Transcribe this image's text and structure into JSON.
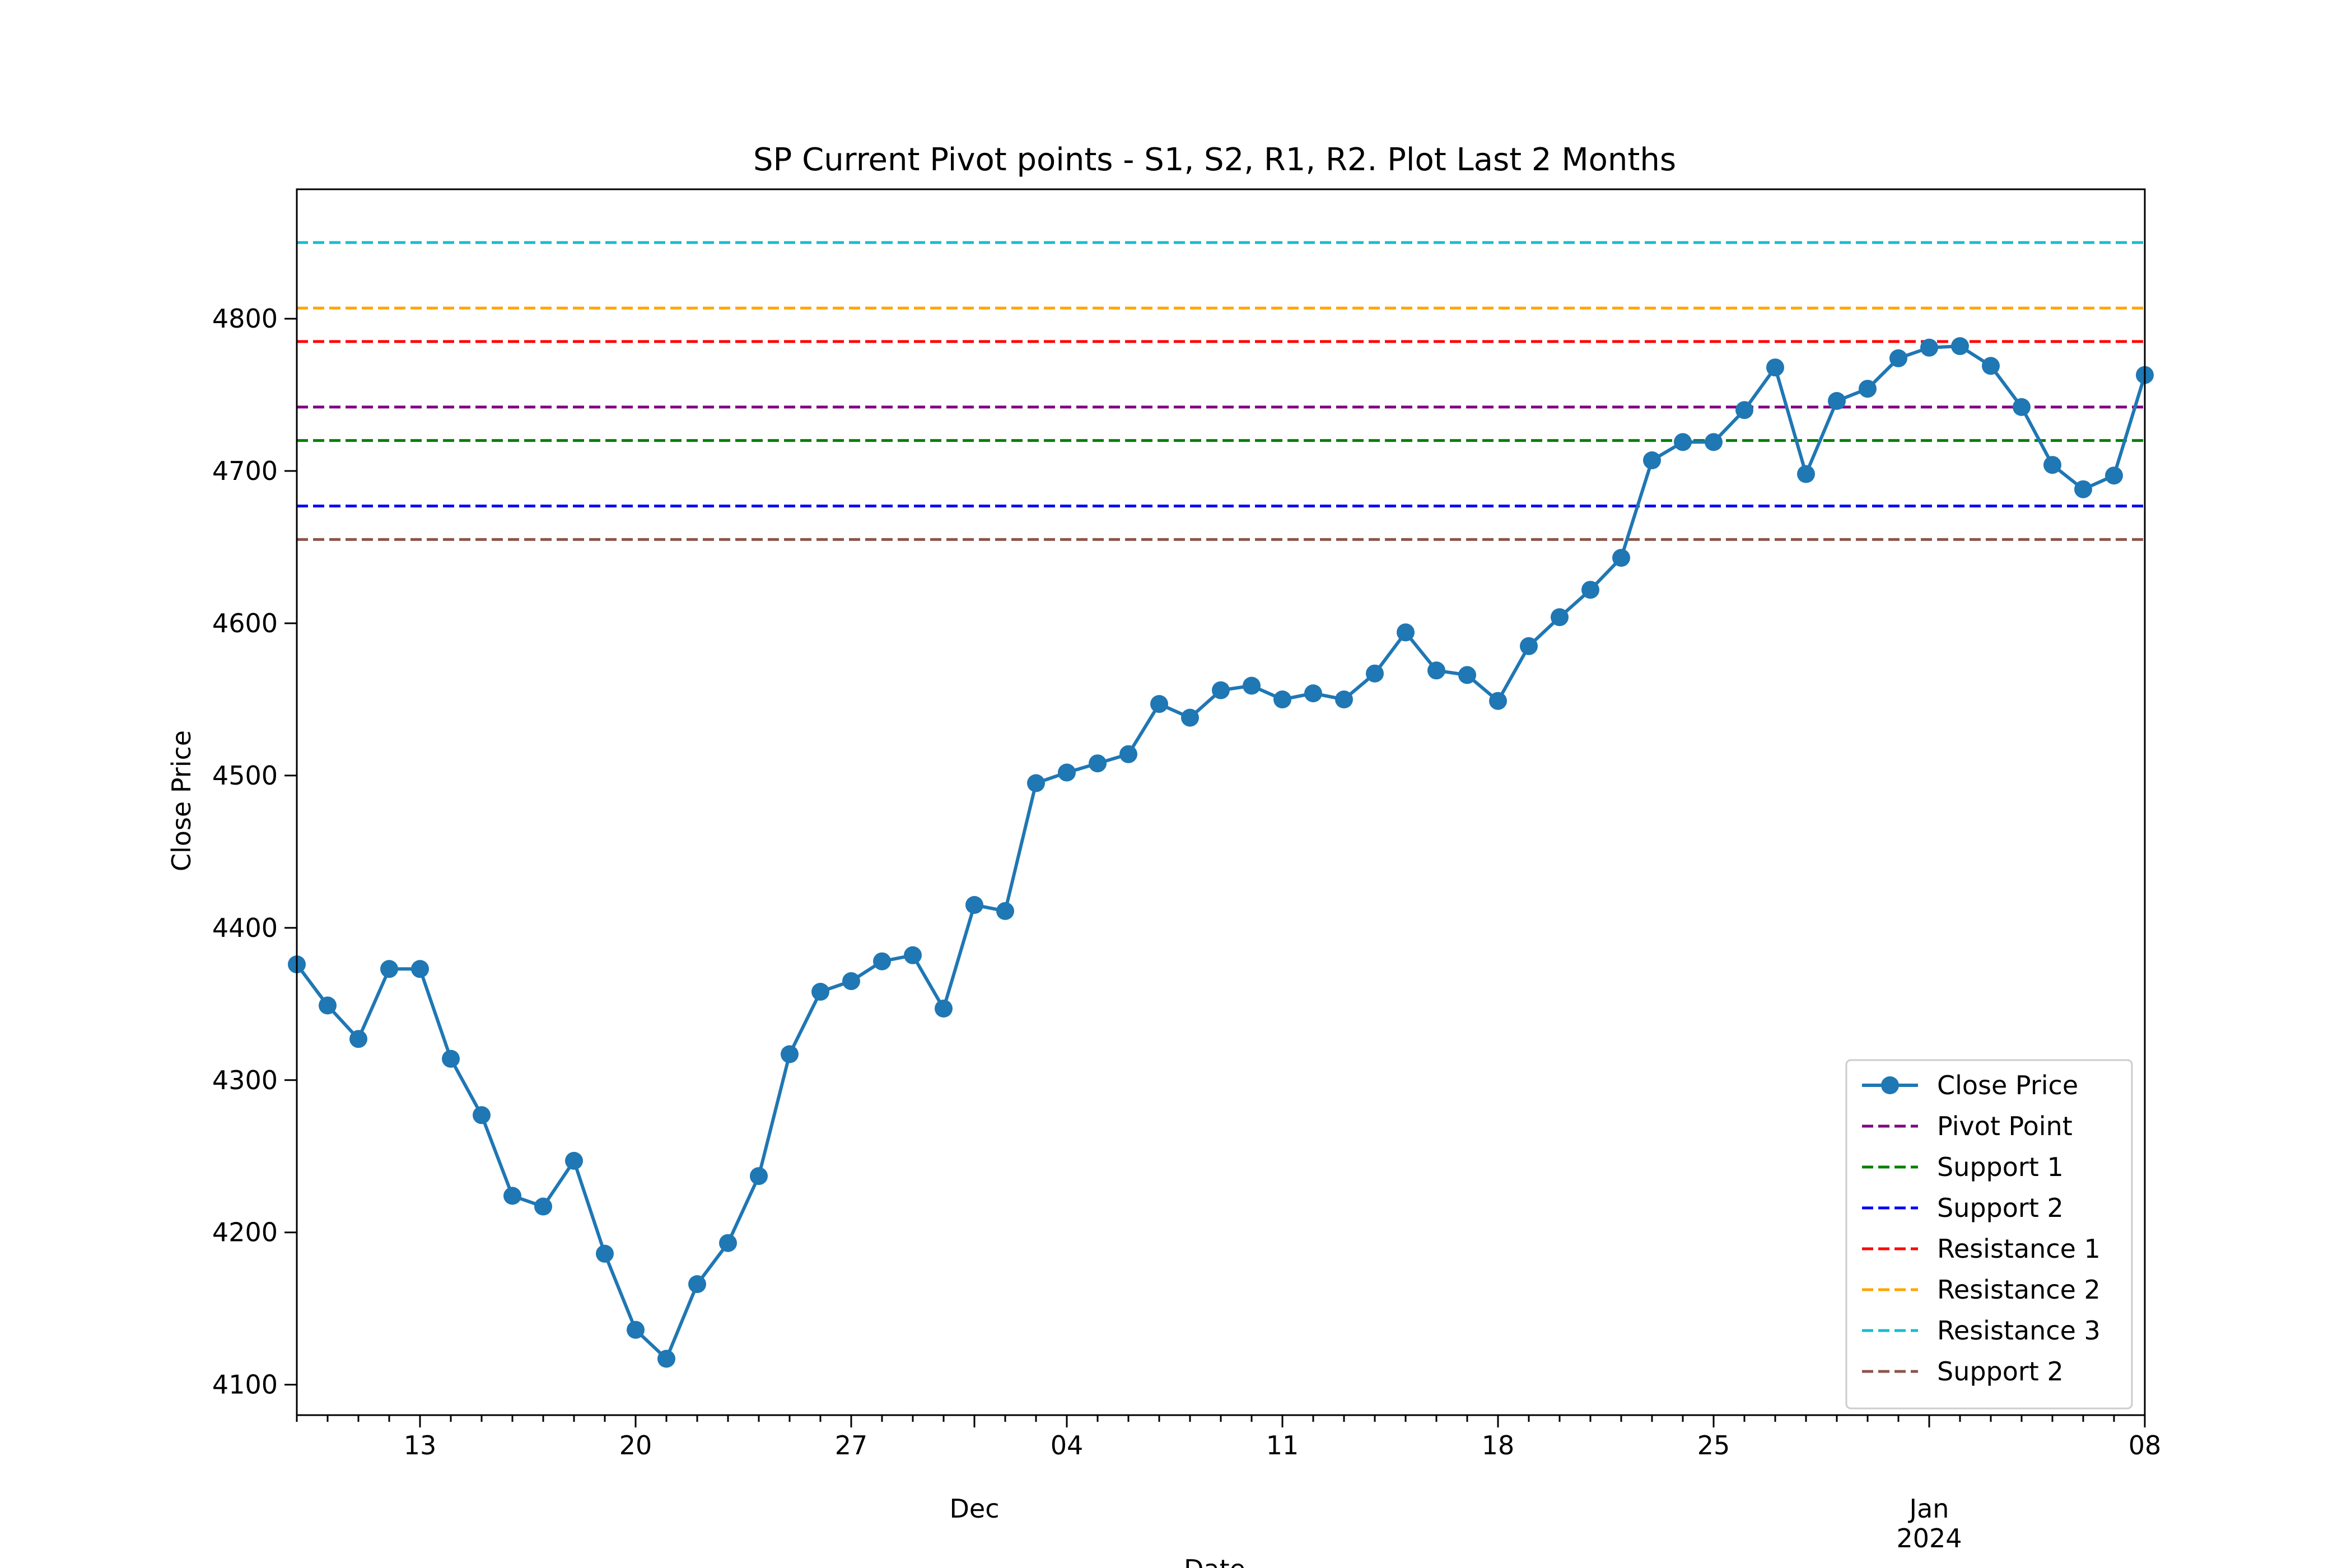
{
  "chart_data": {
    "type": "line",
    "title": "SP Current Pivot points - S1, S2, R1, R2. Plot Last 2 Months",
    "xlabel": "Date",
    "ylabel": "Close Price",
    "ylim": [
      4080,
      4885
    ],
    "xlim": [
      "2023-11-09",
      "2024-01-08"
    ],
    "grid": false,
    "legend_position": "bottom-right",
    "x_ticks": [
      {
        "date": "2023-11-13",
        "label": "13"
      },
      {
        "date": "2023-11-20",
        "label": "20"
      },
      {
        "date": "2023-11-27",
        "label": "27"
      },
      {
        "date": "2023-12-04",
        "label": "04"
      },
      {
        "date": "2023-12-11",
        "label": "11"
      },
      {
        "date": "2023-12-18",
        "label": "18"
      },
      {
        "date": "2023-12-25",
        "label": "25"
      },
      {
        "date": "2024-01-08",
        "label": "08"
      }
    ],
    "x_month_labels": [
      {
        "date": "2023-12-01",
        "label": "Dec"
      },
      {
        "date": "2024-01-01",
        "label": "Jan"
      }
    ],
    "x_year_labels": [
      {
        "date": "2024-01-01",
        "label": "2024"
      }
    ],
    "y_ticks": [
      4100,
      4200,
      4300,
      4400,
      4500,
      4600,
      4700,
      4800
    ],
    "series": [
      {
        "name": "Close Price",
        "color": "#1f77b4",
        "marker": "circle",
        "x": [
          "2023-11-09",
          "2023-11-10",
          "2023-11-11",
          "2023-11-12",
          "2023-11-13",
          "2023-11-14",
          "2023-11-15",
          "2023-11-16",
          "2023-11-17",
          "2023-11-18",
          "2023-11-19",
          "2023-11-20",
          "2023-11-21",
          "2023-11-22",
          "2023-11-23",
          "2023-11-24",
          "2023-11-25",
          "2023-11-26",
          "2023-11-27",
          "2023-11-28",
          "2023-11-29",
          "2023-11-30",
          "2023-12-01",
          "2023-12-02",
          "2023-12-03",
          "2023-12-04",
          "2023-12-05",
          "2023-12-06",
          "2023-12-07",
          "2023-12-08",
          "2023-12-09",
          "2023-12-10",
          "2023-12-11",
          "2023-12-12",
          "2023-12-13",
          "2023-12-14",
          "2023-12-15",
          "2023-12-16",
          "2023-12-17",
          "2023-12-18",
          "2023-12-19",
          "2023-12-20",
          "2023-12-21",
          "2023-12-22",
          "2023-12-23",
          "2023-12-24",
          "2023-12-25",
          "2023-12-26",
          "2023-12-27",
          "2023-12-28",
          "2023-12-29",
          "2023-12-30",
          "2023-12-31",
          "2024-01-01",
          "2024-01-02",
          "2024-01-03",
          "2024-01-04",
          "2024-01-05",
          "2024-01-06",
          "2024-01-07",
          "2024-01-08"
        ],
        "values": [
          4376,
          4349,
          4327,
          4373,
          4373,
          4314,
          4277,
          4224,
          4217,
          4247,
          4186,
          4136,
          4117,
          4166,
          4193,
          4237,
          4317,
          4358,
          4365,
          4378,
          4382,
          4347,
          4415,
          4411,
          4495,
          4502,
          4508,
          4514,
          4547,
          4538,
          4556,
          4559,
          4550,
          4554,
          4550,
          4567,
          4594,
          4569,
          4566,
          4549,
          4585,
          4604,
          4622,
          4643,
          4707,
          4719,
          4719,
          4740,
          4768,
          4698,
          4746,
          4754,
          4774,
          4781,
          4782,
          4769,
          4742,
          4704,
          4688,
          4697,
          4763
        ]
      }
    ],
    "reference_lines": [
      {
        "name": "Pivot Point",
        "value": 4742,
        "color": "#800080"
      },
      {
        "name": "Support 1",
        "value": 4720,
        "color": "#008000"
      },
      {
        "name": "Support 2",
        "value": 4677,
        "color": "#0000ff"
      },
      {
        "name": "Resistance 1",
        "value": 4785,
        "color": "#ff0000"
      },
      {
        "name": "Resistance 2",
        "value": 4807,
        "color": "#ffa500"
      },
      {
        "name": "Resistance 3",
        "value": 4850,
        "color": "#17becf"
      },
      {
        "name": "Support 2",
        "value": 4655,
        "color": "#8c564b"
      }
    ]
  }
}
